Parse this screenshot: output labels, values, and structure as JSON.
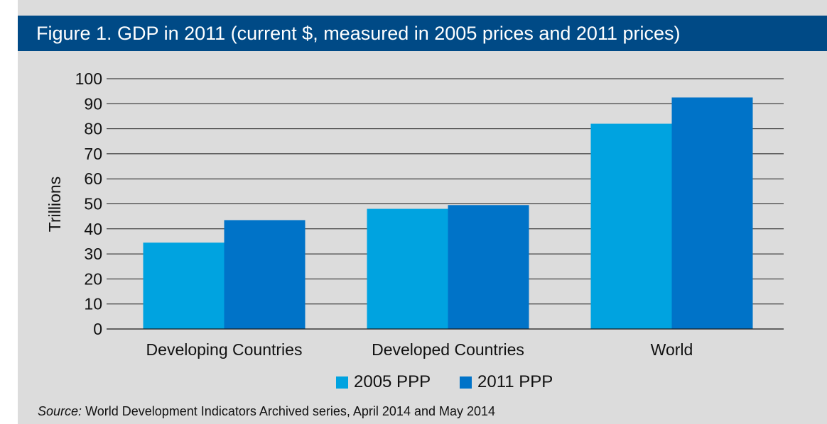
{
  "title": "Figure 1. GDP in 2011 (current $, measured in 2005 prices and 2011 prices)",
  "source": {
    "label": "Source:",
    "text": "World Development Indicators Archived series, April 2014 and May 2014"
  },
  "colors": {
    "title_bar": "#004a86",
    "background": "#dcdcdc",
    "series_2005": "#00a3e0",
    "series_2011": "#0073c8"
  },
  "chart_data": {
    "type": "bar",
    "title": "Figure 1. GDP in 2011 (current $, measured in 2005 prices and 2011 prices)",
    "xlabel": "",
    "ylabel": "Trillions",
    "ylim": [
      0,
      100
    ],
    "yticks": [
      0,
      10,
      20,
      30,
      40,
      50,
      60,
      70,
      80,
      90,
      100
    ],
    "grid": true,
    "legend_position": "bottom",
    "categories": [
      "Developing Countries",
      "Developed Countries",
      "World"
    ],
    "series": [
      {
        "name": "2005 PPP",
        "values": [
          34.5,
          48,
          82
        ],
        "color": "#00a3e0"
      },
      {
        "name": "2011 PPP",
        "values": [
          43.5,
          49.5,
          92.5
        ],
        "color": "#0073c8"
      }
    ]
  }
}
